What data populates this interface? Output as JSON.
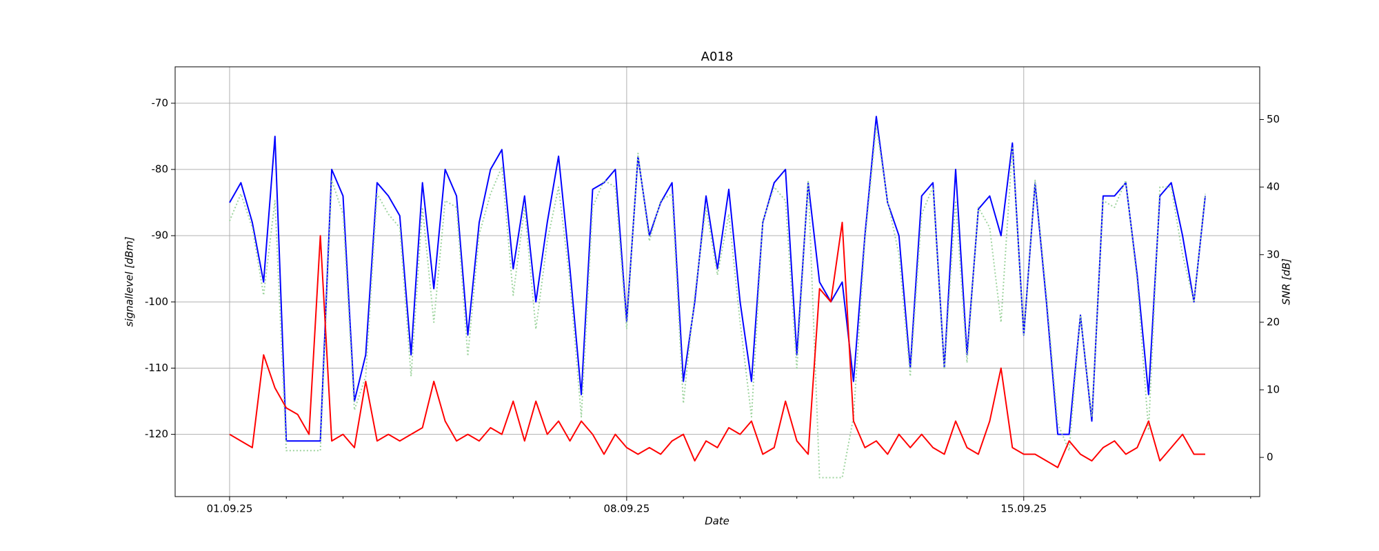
{
  "chart_data": {
    "type": "line",
    "title": "A018",
    "xlabel": "Date",
    "ylabel": "signallevel [dBm]",
    "y2label": "SNR [dB]",
    "x": [
      0,
      0.2,
      0.4,
      0.6,
      0.8,
      1,
      1.2,
      1.4,
      1.6,
      1.8,
      2,
      2.2,
      2.4,
      2.6,
      2.8,
      3,
      3.2,
      3.4,
      3.6,
      3.8,
      4,
      4.2,
      4.4,
      4.6,
      4.8,
      5,
      5.2,
      5.4,
      5.6,
      5.8,
      6,
      6.2,
      6.4,
      6.6,
      6.8,
      7,
      7.2,
      7.4,
      7.6,
      7.8,
      8,
      8.2,
      8.4,
      8.6,
      8.8,
      9,
      9.2,
      9.4,
      9.6,
      9.8,
      10,
      10.2,
      10.4,
      10.6,
      10.8,
      11,
      11.2,
      11.4,
      11.6,
      11.8,
      12,
      12.2,
      12.4,
      12.6,
      12.8,
      13,
      13.2,
      13.4,
      13.6,
      13.8,
      14,
      14.2,
      14.4,
      14.6,
      14.8,
      15,
      15.2,
      15.4,
      15.6,
      15.8,
      16,
      16.2,
      16.4,
      16.6,
      16.8,
      17,
      17.2
    ],
    "series": [
      {
        "color": "#0000ff",
        "linestyle": "solid",
        "values": [
          -85,
          -82,
          -88,
          -97,
          -75,
          -121,
          -121,
          -121,
          -121,
          -80,
          -84,
          -115,
          -108,
          -82,
          -84,
          -87,
          -108,
          -82,
          -98,
          -80,
          -84,
          -105,
          -88,
          -80,
          -77,
          -95,
          -84,
          -100,
          -88,
          -78,
          -95,
          -114,
          -83,
          -82,
          -80,
          -103,
          -78,
          -90,
          -85,
          -82,
          -112,
          -100,
          -84,
          -95,
          -83,
          -100,
          -112,
          -88,
          -82,
          -80,
          -108,
          -82,
          -97,
          -100,
          -97,
          -112,
          -90,
          -72,
          -85,
          -90,
          -110,
          -84,
          -82,
          -110,
          -80,
          -108,
          -86,
          -84,
          -90,
          -76,
          -105,
          -82,
          -100,
          -120,
          -120,
          -102,
          -118,
          -84,
          -84,
          -82,
          -96,
          -114,
          -84,
          -82,
          -90,
          -100,
          -84
        ]
      },
      {
        "color": "#9fd49f",
        "linestyle": "dotted",
        "axis": "y2",
        "values": [
          35,
          39,
          34,
          24,
          38,
          1,
          1,
          1,
          1,
          41,
          36,
          7,
          12,
          39,
          36,
          34,
          12,
          37,
          20,
          38,
          37,
          15,
          33,
          39,
          43,
          24,
          37,
          19,
          32,
          40,
          26,
          6,
          37,
          41,
          40,
          19,
          45,
          32,
          38,
          39,
          8,
          24,
          37,
          27,
          36,
          20,
          6,
          35,
          40,
          38,
          13,
          41,
          -3,
          -3,
          -3,
          6,
          32,
          49,
          38,
          30,
          12,
          36,
          40,
          13,
          38,
          14,
          37,
          34,
          20,
          46,
          18,
          41,
          24,
          5,
          1,
          21,
          6,
          38,
          37,
          41,
          26,
          4,
          40,
          40,
          30,
          23,
          39
        ]
      },
      {
        "color": "#ff0000",
        "linestyle": "solid",
        "values": [
          -120,
          -121,
          -122,
          -108,
          -113,
          -116,
          -117,
          -120,
          -90,
          -121,
          -120,
          -122,
          -112,
          -121,
          -120,
          -121,
          -120,
          -119,
          -112,
          -118,
          -121,
          -120,
          -121,
          -119,
          -120,
          -115,
          -121,
          -115,
          -120,
          -118,
          -121,
          -118,
          -120,
          -123,
          -120,
          -122,
          -123,
          -122,
          -123,
          -121,
          -120,
          -124,
          -121,
          -122,
          -119,
          -120,
          -118,
          -123,
          -122,
          -115,
          -121,
          -123,
          -98,
          -100,
          -88,
          -118,
          -122,
          -121,
          -123,
          -120,
          -122,
          -120,
          -122,
          -123,
          -118,
          -122,
          -123,
          -118,
          -110,
          -122,
          -123,
          -123,
          -124,
          -125,
          -121,
          -123,
          -124,
          -122,
          -121,
          -123,
          -122,
          -118,
          -124,
          -122,
          -120,
          -123,
          -123
        ]
      }
    ],
    "xlim": [
      -0.96,
      18.16
    ],
    "xticks": [
      {
        "value": 0,
        "label": "01.09.25"
      },
      {
        "value": 7,
        "label": "08.09.25"
      },
      {
        "value": 14,
        "label": "15.09.25"
      }
    ],
    "xminorticks": [
      1,
      2,
      3,
      4,
      5,
      6,
      8,
      9,
      10,
      11,
      12,
      13,
      15,
      16,
      17,
      18
    ],
    "ylim": [
      -129.4,
      -64.5
    ],
    "yticks": [
      -120,
      -110,
      -100,
      -90,
      -80,
      -70
    ],
    "y2lim": [
      -5.8,
      57.8
    ],
    "y2ticks": [
      0,
      10,
      20,
      30,
      40,
      50
    ],
    "grid": true
  }
}
